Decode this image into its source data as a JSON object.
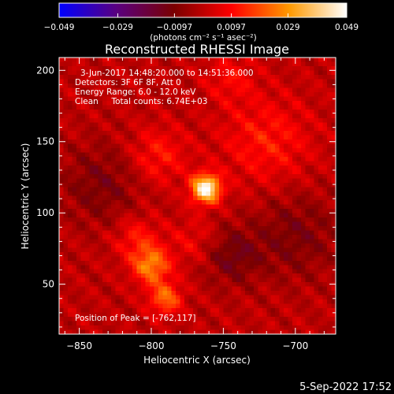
{
  "chart_data": {
    "type": "heatmap",
    "title": "Reconstructed RHESSI Image",
    "xlabel": "Heliocentric X (arcsec)",
    "ylabel": "Heliocentric Y (arcsec)",
    "xlim": [
      -864,
      -672
    ],
    "ylim": [
      15,
      209
    ],
    "xticks": [
      -850,
      -800,
      -750,
      -700
    ],
    "xtick_labels": [
      "−850",
      "−800",
      "−750",
      "−700"
    ],
    "yticks": [
      50,
      100,
      150,
      200
    ],
    "ytick_labels": [
      "50",
      "100",
      "150",
      "200"
    ],
    "colorbar": {
      "min": -0.049,
      "max": 0.049,
      "ticks": [
        -0.049,
        -0.029,
        -0.0097,
        0.0097,
        0.029,
        0.049
      ],
      "tick_labels": [
        "−0.049",
        "−0.029",
        "−0.0097",
        "0.0097",
        "0.029",
        "0.049"
      ],
      "unit_label": "(photons cm⁻² s⁻¹ asec⁻²)",
      "colors": [
        "#0000ff",
        "#5a0080",
        "#7a0000",
        "#ff0000",
        "#ff9900",
        "#ffffff"
      ]
    },
    "annotations": {
      "time_range": "3-Jun-2017 14:48:20.000 to 14:51:36.000",
      "detectors": "Detectors: 3F 6F 8F, Att 0",
      "energy": "Energy Range: 6.0 - 12.0 keV",
      "clean": "Clean     Total counts: 6.74E+03",
      "peak": "Position of Peak = [-762,117]"
    },
    "sources": [
      {
        "x": -762,
        "y": 117,
        "peak": 0.049,
        "sigma": 7
      },
      {
        "x": -800,
        "y": 63,
        "peak": 0.026,
        "sigma": 9
      },
      {
        "x": -790,
        "y": 40,
        "peak": 0.022,
        "sigma": 8
      },
      {
        "x": -810,
        "y": 82,
        "peak": 0.012,
        "sigma": 11
      },
      {
        "x": -795,
        "y": 140,
        "peak": 0.012,
        "sigma": 14
      },
      {
        "x": -770,
        "y": 80,
        "peak": 0.008,
        "sigma": 12
      },
      {
        "x": -720,
        "y": 150,
        "peak": 0.012,
        "sigma": 22
      },
      {
        "x": -745,
        "y": 195,
        "peak": 0.009,
        "sigma": 12
      },
      {
        "x": -745,
        "y": 70,
        "peak": -0.012,
        "sigma": 14
      },
      {
        "x": -835,
        "y": 120,
        "peak": -0.01,
        "sigma": 20
      },
      {
        "x": -700,
        "y": 85,
        "peak": -0.01,
        "sigma": 22
      }
    ]
  },
  "timestamp": "5-Sep-2022 17:52"
}
